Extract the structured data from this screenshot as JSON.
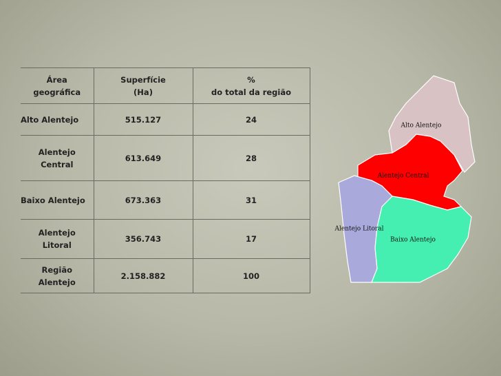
{
  "table": {
    "header": [
      [
        "Área",
        "geográfica"
      ],
      [
        "Superfície",
        "(Ha)"
      ],
      [
        "%",
        "do total da região"
      ]
    ],
    "rows": [
      [
        [
          "Alto Alentejo"
        ],
        [
          "515.127"
        ],
        [
          "24"
        ]
      ],
      [
        [
          "Alentejo",
          "Central"
        ],
        [
          "613.649"
        ],
        [
          "28"
        ]
      ],
      [
        [
          "Baixo Alentejo"
        ],
        [
          "673.363"
        ],
        [
          "31"
        ]
      ],
      [
        [
          "Alentejo",
          "Litoral"
        ],
        [
          "356.743"
        ],
        [
          "17"
        ]
      ],
      [
        [
          "Região",
          "Alentejo"
        ],
        [
          "2.158.882"
        ],
        [
          "100"
        ]
      ]
    ]
  },
  "map": {
    "labels": [
      "Alto Alentejo",
      "Alentejo Central",
      "Alentejo Litoral",
      "Baixo Alentejo"
    ]
  }
}
